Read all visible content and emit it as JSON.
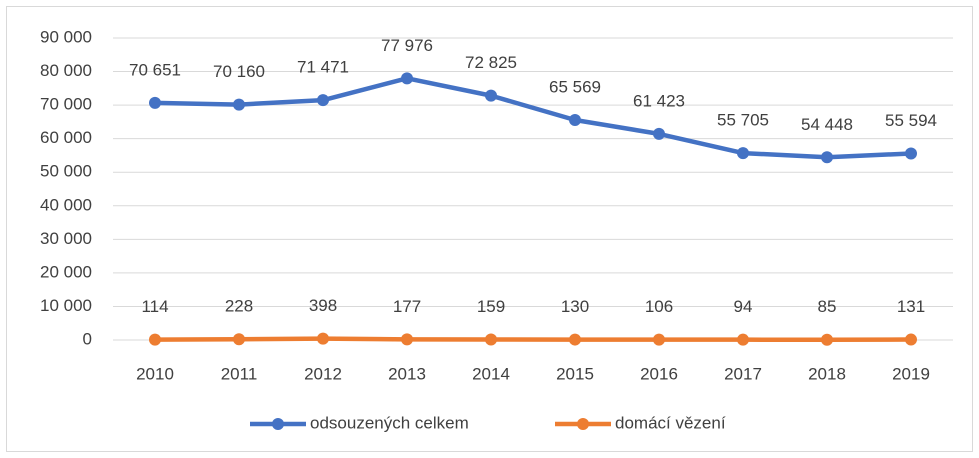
{
  "chart_data": {
    "type": "line",
    "categories": [
      "2010",
      "2011",
      "2012",
      "2013",
      "2014",
      "2015",
      "2016",
      "2017",
      "2018",
      "2019"
    ],
    "series": [
      {
        "name": "odsouzených celkem",
        "color": "#4472c4",
        "values": [
          70651,
          70160,
          71471,
          77976,
          72825,
          65569,
          61423,
          55705,
          54448,
          55594
        ],
        "value_labels": [
          "70 651",
          "70 160",
          "71 471",
          "77 976",
          "72 825",
          "65 569",
          "61 423",
          "55 705",
          "54 448",
          "55 594"
        ]
      },
      {
        "name": "domácí vězení",
        "color": "#ed7d31",
        "values": [
          114,
          228,
          398,
          177,
          159,
          130,
          106,
          94,
          85,
          131
        ]
      }
    ],
    "ylim": [
      0,
      90000
    ],
    "yticks": [
      0,
      {
        "value": 10000,
        "label": "10 000"
      },
      {
        "value": 20000,
        "label": "20 000"
      },
      {
        "value": 30000,
        "label": "30 000"
      },
      {
        "value": 40000,
        "label": "40 000"
      },
      {
        "value": 50000,
        "label": "50 000"
      },
      {
        "value": 60000,
        "label": "60 000"
      },
      {
        "value": 70000,
        "label": "70 000"
      },
      {
        "value": 80000,
        "label": "80 000"
      },
      {
        "value": 90000,
        "label": "90 000"
      }
    ],
    "grid": true,
    "legend": "bottom"
  }
}
